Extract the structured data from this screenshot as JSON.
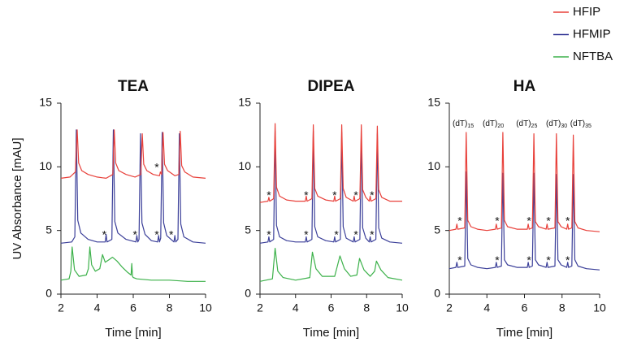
{
  "chart_data": [
    {
      "type": "line",
      "title": "TEA",
      "xlabel": "Time [min]",
      "ylabel": "UV Absorbance [mAU]",
      "xlim": [
        2,
        10
      ],
      "ylim": [
        0,
        15
      ],
      "xticks": [
        2,
        4,
        6,
        8,
        10
      ],
      "yticks": [
        0,
        5,
        10,
        15
      ],
      "series": [
        {
          "name": "HFIP",
          "color": "#e8403a",
          "x": [
            2.0,
            2.5,
            2.8,
            2.9,
            2.98,
            3.15,
            3.5,
            4.0,
            4.5,
            4.87,
            4.95,
            5.03,
            5.2,
            5.6,
            6.1,
            6.42,
            6.5,
            6.58,
            6.75,
            7.1,
            7.45,
            7.5,
            7.57,
            7.65,
            7.73,
            7.9,
            8.3,
            8.52,
            8.6,
            8.68,
            8.85,
            9.3,
            10.0
          ],
          "values": [
            9.1,
            9.2,
            9.6,
            12.9,
            10.3,
            9.7,
            9.4,
            9.2,
            9.1,
            9.4,
            12.9,
            10.3,
            9.7,
            9.4,
            9.2,
            9.4,
            12.6,
            10.2,
            9.7,
            9.4,
            9.3,
            9.6,
            9.4,
            12.7,
            10.2,
            9.7,
            9.3,
            9.4,
            12.8,
            10.1,
            9.6,
            9.2,
            9.1
          ]
        },
        {
          "name": "HFMIP",
          "color": "#3b3f99",
          "x": [
            2.0,
            2.6,
            2.77,
            2.85,
            2.93,
            3.1,
            3.5,
            4.0,
            4.45,
            4.5,
            4.55,
            4.82,
            4.9,
            4.98,
            5.15,
            5.6,
            6.15,
            6.2,
            6.25,
            6.32,
            6.4,
            6.48,
            6.65,
            7.0,
            7.35,
            7.4,
            7.45,
            7.52,
            7.6,
            7.68,
            7.85,
            8.25,
            8.3,
            8.35,
            8.47,
            8.55,
            8.63,
            8.8,
            9.3,
            10.0
          ],
          "values": [
            4.0,
            4.1,
            4.5,
            12.9,
            5.8,
            4.8,
            4.3,
            4.1,
            4.1,
            4.7,
            4.1,
            4.3,
            12.9,
            5.7,
            4.8,
            4.3,
            4.1,
            4.6,
            4.1,
            4.3,
            12.6,
            5.6,
            4.7,
            4.2,
            4.1,
            4.6,
            4.1,
            4.4,
            12.7,
            5.6,
            4.6,
            4.1,
            4.6,
            4.1,
            4.3,
            12.6,
            5.5,
            4.5,
            4.1,
            4.0
          ]
        },
        {
          "name": "NFTBA",
          "color": "#3cb14a",
          "x": [
            2.0,
            2.45,
            2.55,
            2.62,
            2.75,
            3.0,
            3.4,
            3.52,
            3.6,
            3.7,
            3.9,
            4.15,
            4.3,
            4.45,
            4.65,
            4.85,
            5.1,
            5.4,
            5.7,
            5.88,
            5.92,
            5.96,
            6.0,
            6.2,
            7.0,
            8.0,
            9.0,
            10.0
          ],
          "values": [
            1.1,
            1.2,
            1.8,
            3.7,
            1.9,
            1.4,
            1.5,
            2.0,
            3.7,
            2.3,
            1.8,
            2.0,
            3.1,
            2.5,
            2.7,
            2.9,
            2.6,
            2.1,
            1.7,
            1.5,
            2.4,
            1.4,
            1.3,
            1.2,
            1.1,
            1.1,
            1.0,
            1.0
          ]
        }
      ],
      "annotations": [
        {
          "text": "*",
          "x": 7.3,
          "y": 10.1
        },
        {
          "text": "*",
          "x": 4.4,
          "y": 4.8
        },
        {
          "text": "*",
          "x": 6.1,
          "y": 4.8
        },
        {
          "text": "*",
          "x": 7.3,
          "y": 4.8
        },
        {
          "text": "*",
          "x": 8.1,
          "y": 4.8
        }
      ]
    },
    {
      "type": "line",
      "title": "DIPEA",
      "xlabel": "Time [min]",
      "xlim": [
        2,
        10
      ],
      "ylim": [
        0,
        15
      ],
      "xticks": [
        2,
        4,
        6,
        8,
        10
      ],
      "yticks": [
        0,
        5,
        10,
        15
      ],
      "series": [
        {
          "color": "#e8403a",
          "x": [
            2.0,
            2.45,
            2.5,
            2.55,
            2.77,
            2.85,
            2.93,
            3.1,
            3.5,
            4.0,
            4.55,
            4.6,
            4.65,
            4.92,
            5.0,
            5.08,
            5.25,
            5.7,
            6.15,
            6.2,
            6.25,
            6.52,
            6.6,
            6.68,
            6.85,
            7.25,
            7.3,
            7.35,
            7.62,
            7.7,
            7.78,
            7.95,
            8.15,
            8.2,
            8.25,
            8.52,
            8.6,
            8.68,
            8.85,
            9.3,
            10.0
          ],
          "values": [
            7.2,
            7.3,
            7.6,
            7.3,
            7.5,
            13.4,
            8.4,
            7.7,
            7.4,
            7.3,
            7.3,
            7.7,
            7.3,
            7.5,
            13.3,
            8.3,
            7.7,
            7.4,
            7.3,
            7.7,
            7.3,
            7.5,
            13.3,
            8.3,
            7.6,
            7.3,
            7.7,
            7.3,
            7.5,
            13.3,
            8.2,
            7.6,
            7.3,
            7.7,
            7.3,
            7.5,
            13.2,
            8.2,
            7.6,
            7.3,
            7.3
          ]
        },
        {
          "color": "#3b3f99",
          "x": [
            2.0,
            2.45,
            2.5,
            2.55,
            2.77,
            2.85,
            2.93,
            3.1,
            3.5,
            4.0,
            4.55,
            4.6,
            4.65,
            4.92,
            5.0,
            5.08,
            5.25,
            5.7,
            6.15,
            6.2,
            6.25,
            6.52,
            6.6,
            6.68,
            6.85,
            7.25,
            7.3,
            7.35,
            7.62,
            7.7,
            7.78,
            7.95,
            8.15,
            8.2,
            8.25,
            8.52,
            8.6,
            8.68,
            8.85,
            9.3,
            10.0
          ],
          "values": [
            4.0,
            4.1,
            4.5,
            4.1,
            4.3,
            12.8,
            5.4,
            4.5,
            4.2,
            4.1,
            4.1,
            4.5,
            4.1,
            4.3,
            12.8,
            5.3,
            4.5,
            4.2,
            4.1,
            4.5,
            4.1,
            4.3,
            12.7,
            5.3,
            4.4,
            4.1,
            4.5,
            4.1,
            4.3,
            12.7,
            5.2,
            4.4,
            4.1,
            4.5,
            4.1,
            4.3,
            12.6,
            5.2,
            4.4,
            4.1,
            4.0
          ]
        },
        {
          "color": "#3cb14a",
          "x": [
            2.0,
            2.7,
            2.85,
            3.0,
            3.3,
            4.0,
            4.8,
            4.95,
            5.15,
            5.5,
            6.2,
            6.5,
            6.75,
            7.1,
            7.45,
            7.6,
            7.85,
            8.2,
            8.45,
            8.55,
            8.8,
            9.2,
            10.0
          ],
          "values": [
            1.0,
            1.2,
            3.6,
            1.8,
            1.3,
            1.1,
            1.3,
            3.3,
            2.0,
            1.4,
            1.4,
            3.0,
            2.0,
            1.4,
            1.5,
            2.8,
            1.9,
            1.4,
            1.8,
            2.6,
            1.9,
            1.3,
            1.1
          ]
        }
      ],
      "annotations": [
        {
          "text": "*",
          "x": 2.5,
          "y": 7.9
        },
        {
          "text": "*",
          "x": 4.6,
          "y": 7.9
        },
        {
          "text": "*",
          "x": 6.2,
          "y": 7.9
        },
        {
          "text": "*",
          "x": 7.4,
          "y": 7.9
        },
        {
          "text": "*",
          "x": 8.3,
          "y": 7.9
        },
        {
          "text": "*",
          "x": 2.5,
          "y": 4.8
        },
        {
          "text": "*",
          "x": 4.6,
          "y": 4.8
        },
        {
          "text": "*",
          "x": 6.3,
          "y": 4.8
        },
        {
          "text": "*",
          "x": 7.4,
          "y": 4.8
        },
        {
          "text": "*",
          "x": 8.3,
          "y": 4.8
        }
      ]
    },
    {
      "type": "line",
      "title": "HA",
      "xlabel": "Time [min]",
      "xlim": [
        2,
        10
      ],
      "ylim": [
        0,
        15
      ],
      "xticks": [
        2,
        4,
        6,
        8,
        10
      ],
      "yticks": [
        0,
        5,
        10,
        15
      ],
      "series": [
        {
          "color": "#e8403a",
          "x": [
            2.0,
            2.35,
            2.4,
            2.45,
            2.82,
            2.9,
            2.98,
            3.15,
            3.5,
            4.0,
            4.45,
            4.5,
            4.55,
            4.77,
            4.85,
            4.93,
            5.1,
            5.6,
            6.15,
            6.2,
            6.25,
            6.42,
            6.5,
            6.58,
            6.75,
            7.15,
            7.2,
            7.25,
            7.62,
            7.7,
            7.78,
            7.95,
            8.25,
            8.3,
            8.35,
            8.52,
            8.6,
            8.68,
            8.85,
            9.3,
            10.0
          ],
          "values": [
            5.0,
            5.1,
            5.5,
            5.1,
            5.2,
            12.7,
            5.8,
            5.3,
            5.1,
            5.0,
            5.1,
            5.5,
            5.1,
            5.2,
            12.7,
            5.8,
            5.3,
            5.1,
            5.1,
            5.5,
            5.1,
            5.2,
            12.6,
            5.7,
            5.3,
            5.1,
            5.5,
            5.1,
            5.2,
            12.6,
            5.7,
            5.3,
            5.1,
            5.5,
            5.1,
            5.2,
            12.5,
            5.7,
            5.2,
            5.0,
            4.9
          ]
        },
        {
          "color": "#3b3f99",
          "x": [
            2.0,
            2.35,
            2.4,
            2.45,
            2.82,
            2.9,
            2.98,
            3.15,
            3.5,
            4.0,
            4.45,
            4.5,
            4.55,
            4.77,
            4.85,
            4.93,
            5.1,
            5.6,
            6.15,
            6.2,
            6.25,
            6.42,
            6.5,
            6.58,
            6.75,
            7.15,
            7.2,
            7.25,
            7.62,
            7.7,
            7.78,
            7.95,
            8.25,
            8.3,
            8.35,
            8.52,
            8.6,
            8.68,
            8.85,
            9.3,
            10.0
          ],
          "values": [
            2.0,
            2.1,
            2.5,
            2.1,
            2.2,
            9.6,
            2.8,
            2.3,
            2.1,
            2.0,
            2.1,
            2.5,
            2.1,
            2.2,
            9.5,
            2.7,
            2.3,
            2.1,
            2.1,
            2.5,
            2.1,
            2.2,
            9.5,
            2.7,
            2.3,
            2.1,
            2.5,
            2.1,
            2.2,
            9.4,
            2.7,
            2.3,
            2.1,
            2.5,
            2.1,
            2.2,
            9.4,
            2.7,
            2.2,
            2.0,
            1.9
          ]
        }
      ],
      "annotations": [
        {
          "text": "*",
          "x": 2.56,
          "y": 5.9
        },
        {
          "text": "*",
          "x": 4.55,
          "y": 5.9
        },
        {
          "text": "*",
          "x": 6.24,
          "y": 5.9
        },
        {
          "text": "*",
          "x": 7.28,
          "y": 5.9
        },
        {
          "text": "*",
          "x": 8.3,
          "y": 5.9
        },
        {
          "text": "*",
          "x": 2.56,
          "y": 2.8
        },
        {
          "text": "*",
          "x": 4.55,
          "y": 2.8
        },
        {
          "text": "*",
          "x": 6.24,
          "y": 2.8
        },
        {
          "text": "*",
          "x": 7.28,
          "y": 2.8
        },
        {
          "text": "*",
          "x": 8.3,
          "y": 2.8
        }
      ],
      "peak_labels": [
        {
          "text": "(dT)",
          "sub": "15",
          "x": 2.74,
          "y": 13.4
        },
        {
          "text": "(dT)",
          "sub": "20",
          "x": 4.34,
          "y": 13.4
        },
        {
          "text": "(dT)",
          "sub": "25",
          "x": 6.12,
          "y": 13.4
        },
        {
          "text": "(dT)",
          "sub": "30",
          "x": 7.71,
          "y": 13.4
        },
        {
          "text": "(dT)",
          "sub": "35",
          "x": 9.0,
          "y": 13.4
        }
      ]
    }
  ]
}
